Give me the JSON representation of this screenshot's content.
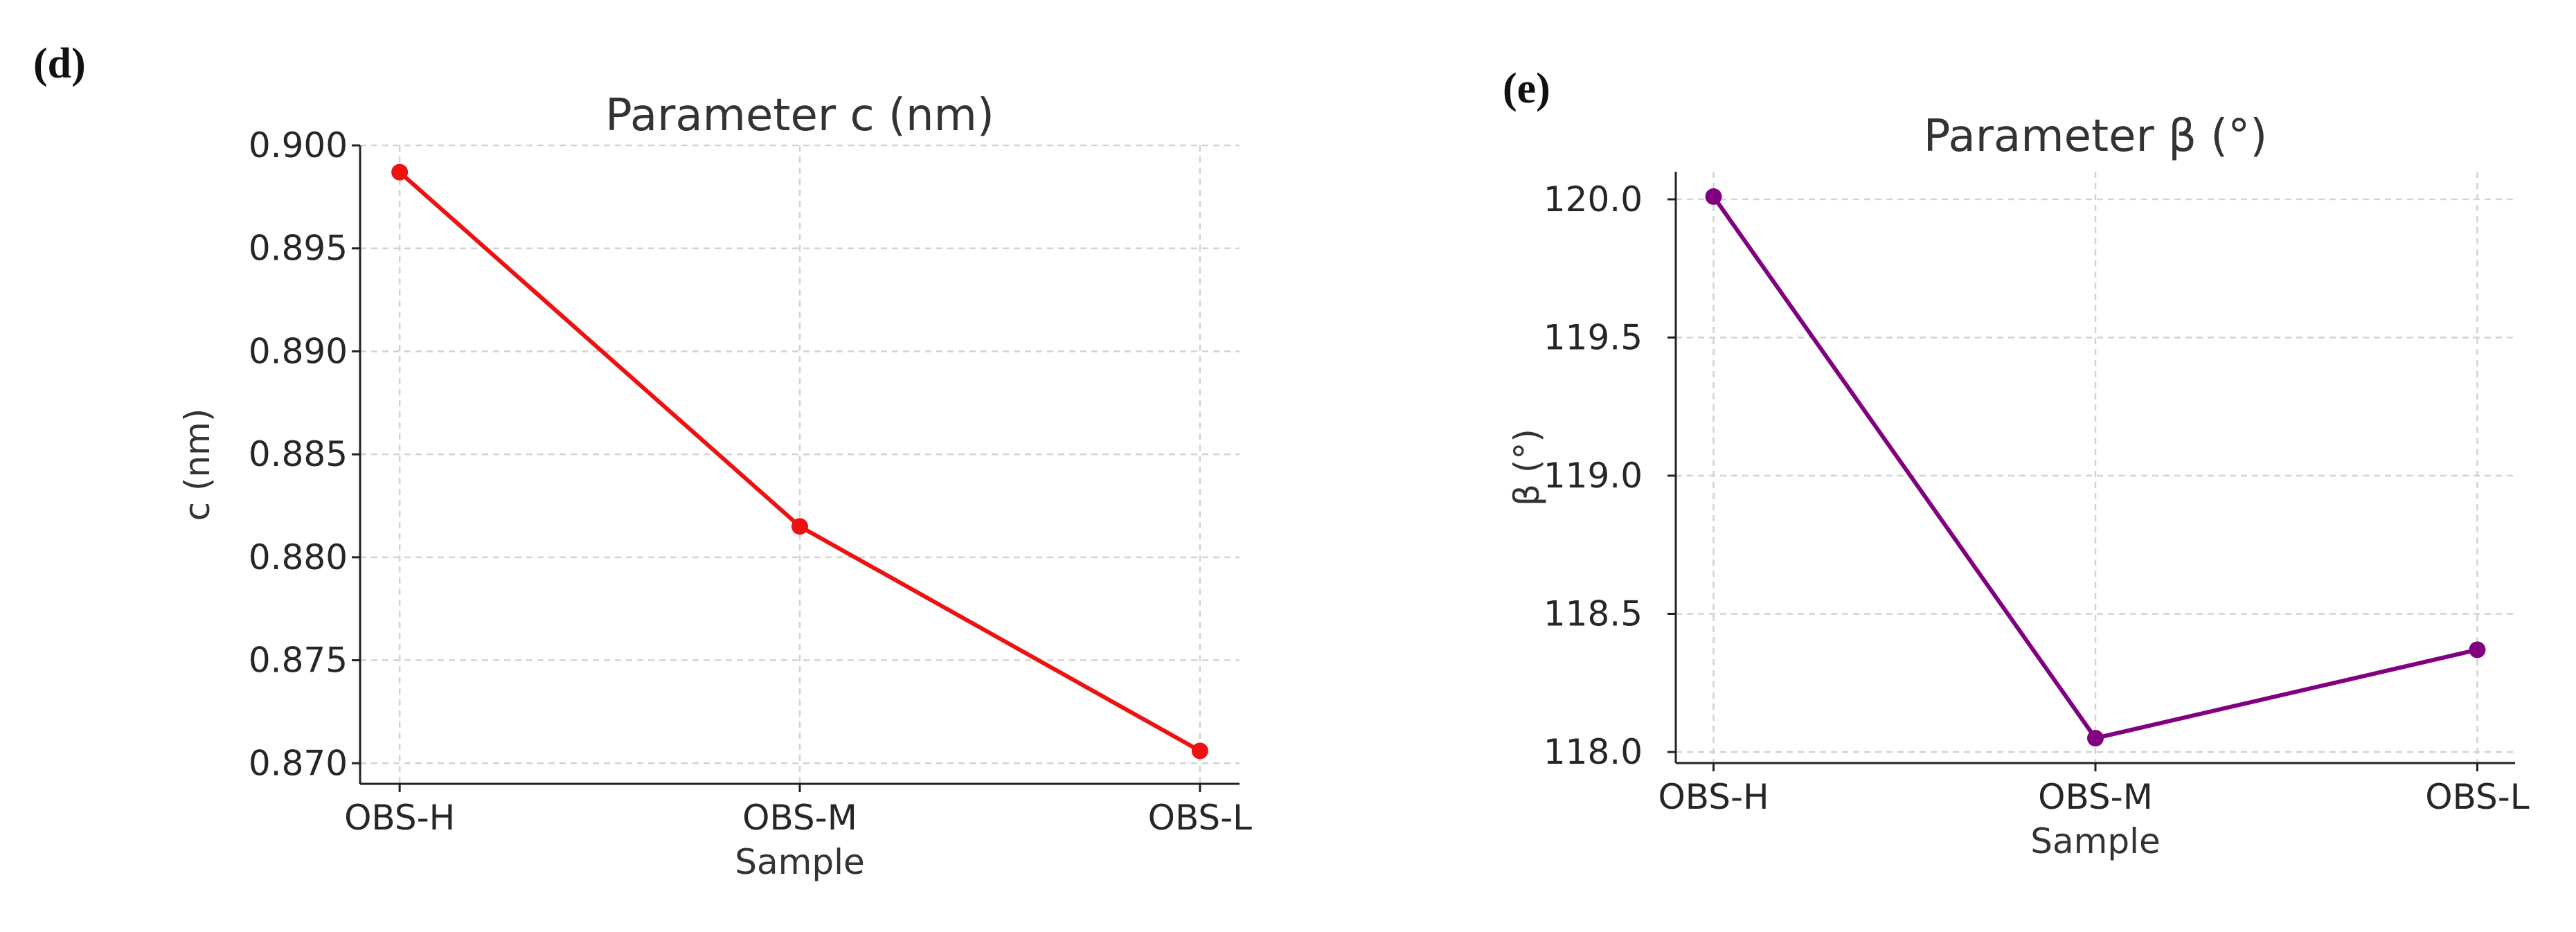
{
  "chart_data": [
    {
      "panel_label": "(d)",
      "type": "line",
      "title": "Parameter c (nm)",
      "xlabel": "Sample",
      "ylabel": "c (nm)",
      "categories": [
        "OBS-H",
        "OBS-M",
        "OBS-L"
      ],
      "series": [
        {
          "name": "c (nm)",
          "values": [
            0.8987,
            0.8815,
            0.8706
          ],
          "color": "#ee1111"
        }
      ],
      "ylim": [
        0.869,
        0.9
      ],
      "yticks": [
        0.87,
        0.875,
        0.88,
        0.885,
        0.89,
        0.895,
        0.9
      ],
      "ytick_labels": [
        "0.870",
        "0.875",
        "0.880",
        "0.885",
        "0.890",
        "0.895",
        "0.900"
      ],
      "grid": true
    },
    {
      "panel_label": "(e)",
      "type": "line",
      "title": "Parameter β (°)",
      "xlabel": "Sample",
      "ylabel": "β (°)",
      "categories": [
        "OBS-H",
        "OBS-M",
        "OBS-L"
      ],
      "series": [
        {
          "name": "β (°)",
          "values": [
            120.01,
            118.05,
            118.37
          ],
          "color": "#800080"
        }
      ],
      "ylim": [
        117.96,
        120.1
      ],
      "yticks": [
        118.0,
        118.5,
        119.0,
        119.5,
        120.0
      ],
      "ytick_labels": [
        "118.0",
        "118.5",
        "119.0",
        "119.5",
        "120.0"
      ],
      "grid": true
    }
  ]
}
